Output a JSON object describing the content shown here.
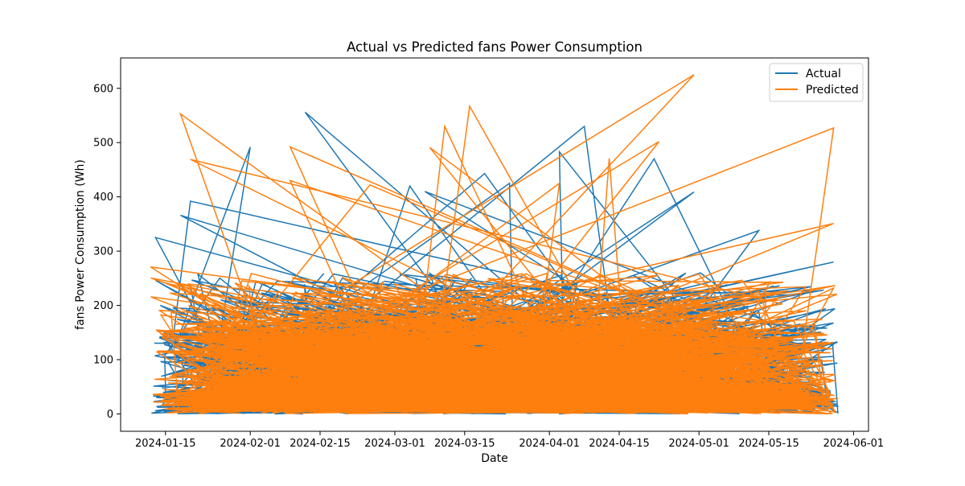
{
  "chart_data": {
    "type": "line",
    "title": "Actual vs Predicted fans Power Consumption",
    "xlabel": "Date",
    "ylabel": "fans Power Consumption (Wh)",
    "x_ticks": [
      "2024-01-15",
      "2024-02-01",
      "2024-02-15",
      "2024-03-01",
      "2024-03-15",
      "2024-04-01",
      "2024-04-15",
      "2024-05-01",
      "2024-05-15",
      "2024-06-01"
    ],
    "xlim": [
      "2024-01-06",
      "2024-06-04"
    ],
    "y_ticks": [
      0,
      100,
      200,
      300,
      400,
      500,
      600
    ],
    "ylim": [
      -32,
      656
    ],
    "legend_position": "top-right",
    "grid": false,
    "noise_seed": 12345,
    "series": [
      {
        "name": "Actual",
        "color": "#1f77b4",
        "peaks": [
          {
            "x": "2024-01-13",
            "y": 325
          },
          {
            "x": "2024-01-18",
            "y": 366
          },
          {
            "x": "2024-01-20",
            "y": 392
          },
          {
            "x": "2024-02-01",
            "y": 492
          },
          {
            "x": "2024-02-12",
            "y": 556
          },
          {
            "x": "2024-03-04",
            "y": 420
          },
          {
            "x": "2024-03-07",
            "y": 410
          },
          {
            "x": "2024-03-19",
            "y": 443
          },
          {
            "x": "2024-03-24",
            "y": 425
          },
          {
            "x": "2024-04-03",
            "y": 483
          },
          {
            "x": "2024-04-08",
            "y": 530
          },
          {
            "x": "2024-04-22",
            "y": 470
          },
          {
            "x": "2024-04-30",
            "y": 409
          },
          {
            "x": "2024-05-13",
            "y": 338
          },
          {
            "x": "2024-05-28",
            "y": 280
          }
        ]
      },
      {
        "name": "Predicted",
        "color": "#ff7f0e",
        "peaks": [
          {
            "x": "2024-01-12",
            "y": 271
          },
          {
            "x": "2024-01-18",
            "y": 553
          },
          {
            "x": "2024-01-20",
            "y": 469
          },
          {
            "x": "2024-02-09",
            "y": 492
          },
          {
            "x": "2024-02-09",
            "y": 430
          },
          {
            "x": "2024-02-25",
            "y": 422
          },
          {
            "x": "2024-03-08",
            "y": 491
          },
          {
            "x": "2024-03-11",
            "y": 530
          },
          {
            "x": "2024-03-16",
            "y": 567
          },
          {
            "x": "2024-04-03",
            "y": 425
          },
          {
            "x": "2024-04-13",
            "y": 471
          },
          {
            "x": "2024-04-23",
            "y": 502
          },
          {
            "x": "2024-04-30",
            "y": 625
          },
          {
            "x": "2024-05-28",
            "y": 527
          },
          {
            "x": "2024-05-28",
            "y": 351
          }
        ]
      }
    ]
  }
}
